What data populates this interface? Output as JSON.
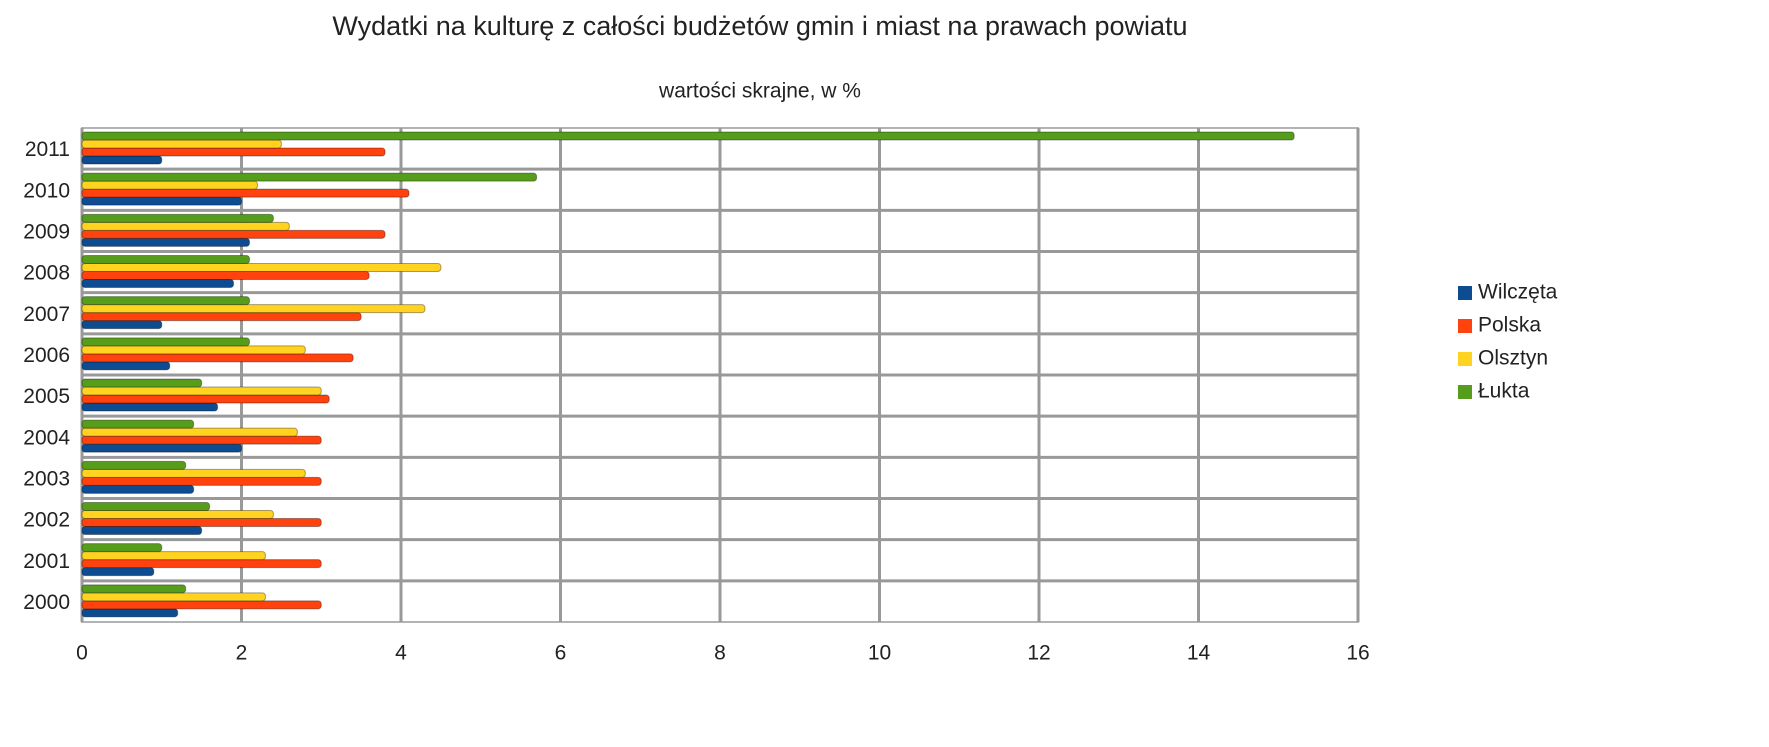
{
  "chart_data": {
    "type": "bar",
    "orientation": "horizontal",
    "title": "Wydatki na kulturę z całości budżetów gmin i  miast na prawach powiatu",
    "subtitle": "wartości skrajne, w %",
    "categories": [
      "2000",
      "2001",
      "2002",
      "2003",
      "2004",
      "2005",
      "2006",
      "2007",
      "2008",
      "2009",
      "2010",
      "2011"
    ],
    "series": [
      {
        "name": "Wilczęta",
        "color": "#0e4c92",
        "values": [
          1.2,
          0.9,
          1.5,
          1.4,
          2.0,
          1.7,
          1.1,
          1.0,
          1.9,
          2.1,
          2.0,
          1.0
        ]
      },
      {
        "name": "Polska",
        "color": "#ff420e",
        "values": [
          3.0,
          3.0,
          3.0,
          3.0,
          3.0,
          3.1,
          3.4,
          3.5,
          3.6,
          3.8,
          4.1,
          3.8
        ]
      },
      {
        "name": "Olsztyn",
        "color": "#ffd320",
        "values": [
          2.3,
          2.3,
          2.4,
          2.8,
          2.7,
          3.0,
          2.8,
          4.3,
          4.5,
          2.6,
          2.2,
          2.5
        ]
      },
      {
        "name": "Łukta",
        "color": "#579d1c",
        "values": [
          1.3,
          1.0,
          1.6,
          1.3,
          1.4,
          1.5,
          2.1,
          2.1,
          2.1,
          2.4,
          5.7,
          15.2
        ]
      }
    ],
    "xlim": [
      0,
      16
    ],
    "xticks": [
      0,
      2,
      4,
      6,
      8,
      10,
      12,
      14,
      16
    ],
    "grid": true,
    "legend": "right"
  }
}
